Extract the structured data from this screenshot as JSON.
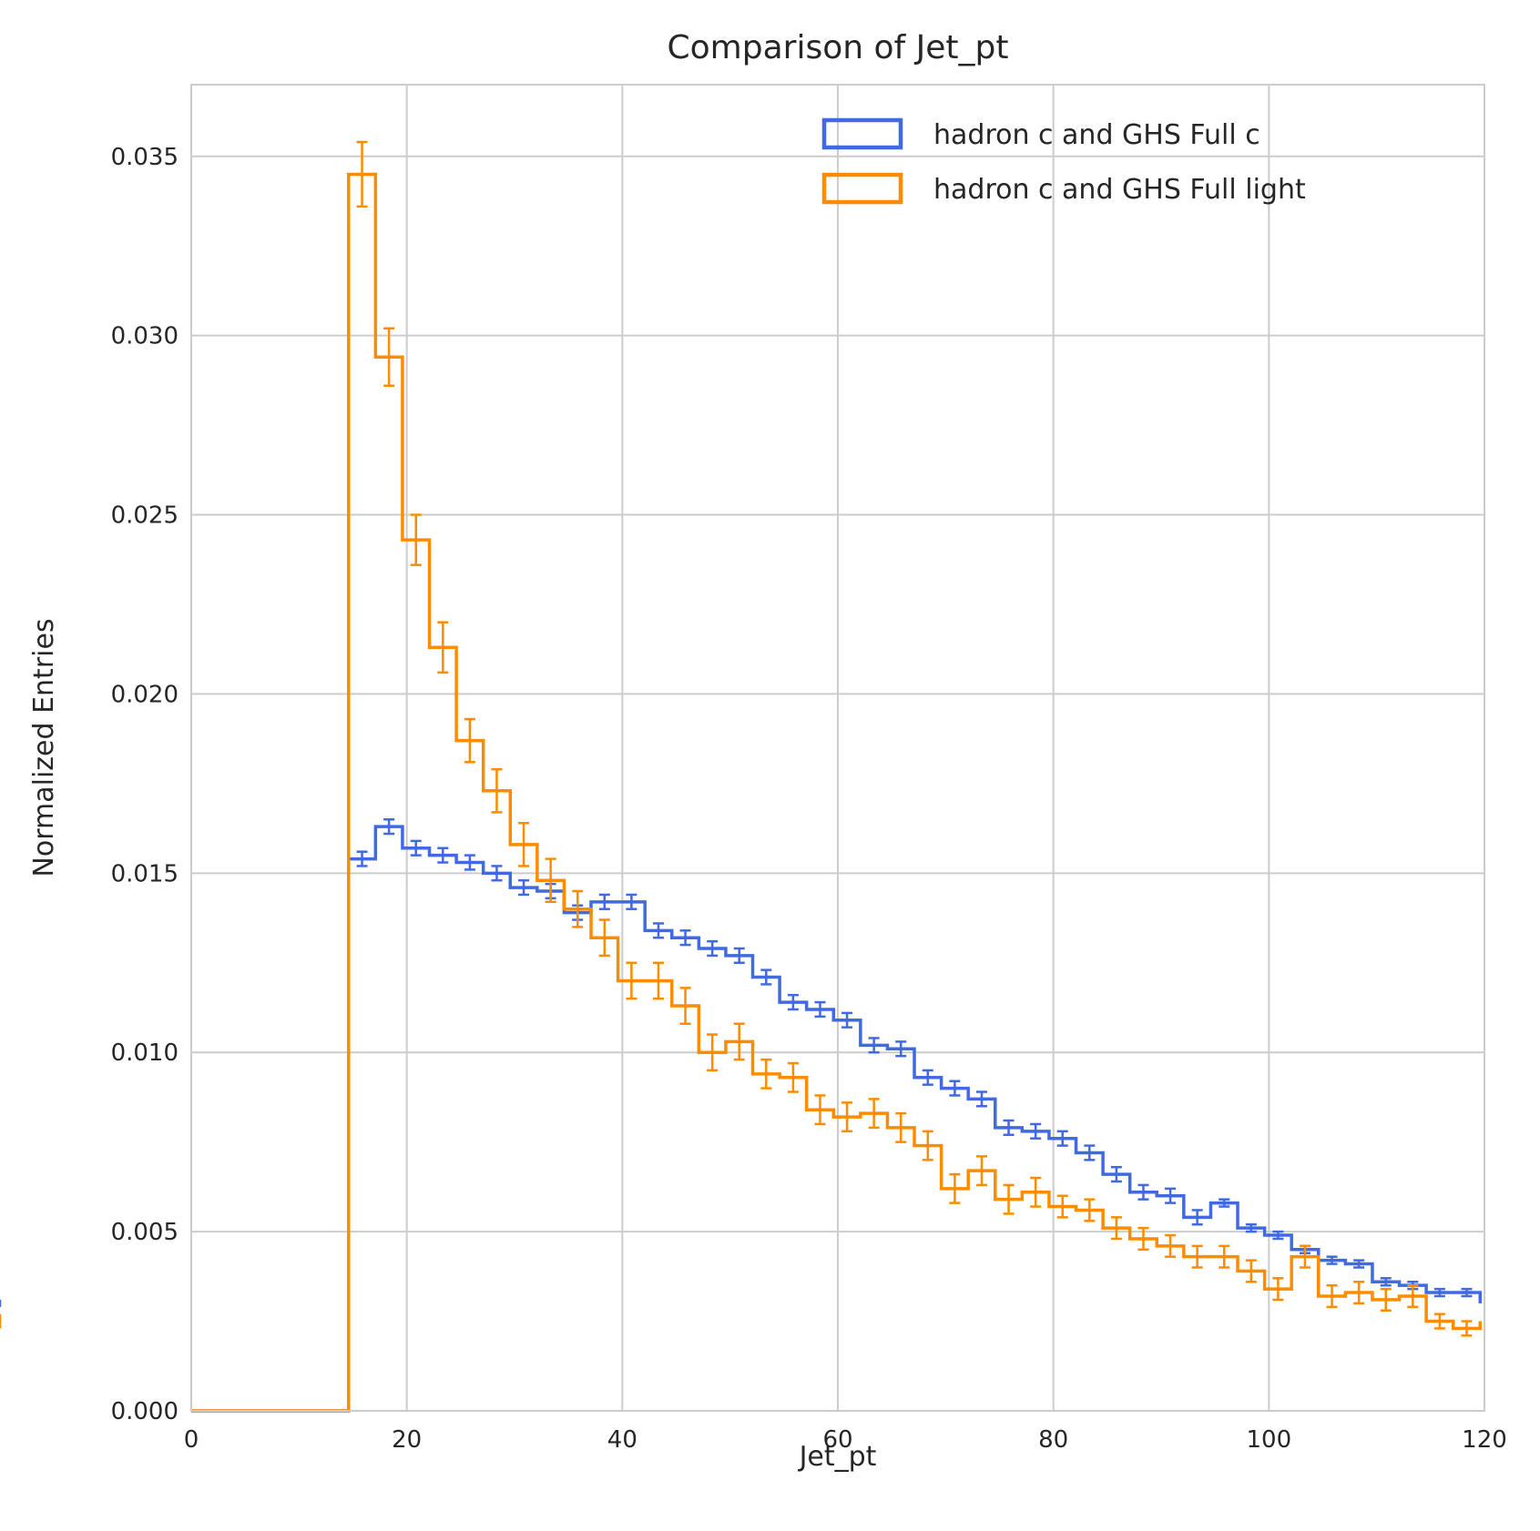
{
  "chart_data": {
    "type": "histogram",
    "title": "Comparison of Jet_pt",
    "xlabel": "Jet_pt",
    "ylabel": "Normalized Entries",
    "xlim": [
      0,
      120
    ],
    "ylim": [
      0,
      0.037
    ],
    "xticks": [
      0,
      20,
      40,
      60,
      80,
      100,
      120
    ],
    "xtick_labels": [
      "0",
      "20",
      "40",
      "60",
      "80",
      "100",
      "120"
    ],
    "yticks": [
      0,
      0.005,
      0.01,
      0.015,
      0.02,
      0.025,
      0.03,
      0.035
    ],
    "ytick_labels": [
      "0.000",
      "0.005",
      "0.010",
      "0.015",
      "0.020",
      "0.025",
      "0.030",
      "0.035"
    ],
    "grid": true,
    "legend_position": "top-right",
    "bin_edges": [
      14.6,
      17.1,
      19.6,
      22.1,
      24.6,
      27.1,
      29.6,
      32.1,
      34.6,
      37.1,
      39.6,
      42.1,
      44.6,
      47.1,
      49.6,
      52.1,
      54.6,
      57.1,
      59.6,
      62.1,
      64.6,
      67.1,
      69.6,
      72.1,
      74.6,
      77.1,
      79.6,
      82.1,
      84.6,
      87.1,
      89.6,
      92.1,
      94.6,
      97.1,
      99.6,
      102.1,
      104.6,
      107.1,
      109.6,
      112.1,
      114.6,
      117.1,
      119.6
    ],
    "series": [
      {
        "name": "hadron c and GHS Full c",
        "color": "#4169e1",
        "values": [
          0.0154,
          0.0163,
          0.0157,
          0.0155,
          0.0153,
          0.015,
          0.0146,
          0.0145,
          0.0139,
          0.0142,
          0.0142,
          0.0134,
          0.0132,
          0.0129,
          0.0127,
          0.0121,
          0.0114,
          0.0112,
          0.0109,
          0.0102,
          0.0101,
          0.0093,
          0.009,
          0.0087,
          0.0079,
          0.0078,
          0.0076,
          0.0072,
          0.0066,
          0.0061,
          0.006,
          0.0054,
          0.0058,
          0.0051,
          0.0049,
          0.0045,
          0.0042,
          0.0041,
          0.0036,
          0.0035,
          0.0033,
          0.0033,
          0.003
        ],
        "errors": [
          0.0002,
          0.0002,
          0.0002,
          0.0002,
          0.0002,
          0.0002,
          0.0002,
          0.0002,
          0.0002,
          0.0002,
          0.0002,
          0.0002,
          0.0002,
          0.0002,
          0.0002,
          0.0002,
          0.0002,
          0.0002,
          0.0002,
          0.0002,
          0.0002,
          0.0002,
          0.0002,
          0.0002,
          0.0002,
          0.0002,
          0.0002,
          0.0002,
          0.0002,
          0.0002,
          0.0002,
          0.0002,
          0.0001,
          0.0001,
          0.0001,
          0.0001,
          0.0001,
          0.0001,
          0.0001,
          0.0001,
          0.0001,
          0.0001,
          0.0001
        ]
      },
      {
        "name": "hadron c and GHS Full light",
        "color": "#ff8c00",
        "values": [
          0.0345,
          0.0294,
          0.0243,
          0.0213,
          0.0187,
          0.0173,
          0.0158,
          0.0148,
          0.014,
          0.0132,
          0.012,
          0.012,
          0.0113,
          0.01,
          0.0103,
          0.0094,
          0.0093,
          0.0084,
          0.0082,
          0.0083,
          0.0079,
          0.0074,
          0.0062,
          0.0067,
          0.0059,
          0.0061,
          0.0057,
          0.0056,
          0.0051,
          0.0048,
          0.0046,
          0.0043,
          0.0043,
          0.0039,
          0.0034,
          0.0043,
          0.0032,
          0.0033,
          0.0031,
          0.0032,
          0.0025,
          0.0023,
          0.0025
        ],
        "errors": [
          0.0009,
          0.0008,
          0.0007,
          0.0007,
          0.0006,
          0.0006,
          0.0006,
          0.0006,
          0.0005,
          0.0005,
          0.0005,
          0.0005,
          0.0005,
          0.0005,
          0.0005,
          0.0004,
          0.0004,
          0.0004,
          0.0004,
          0.0004,
          0.0004,
          0.0004,
          0.0004,
          0.0004,
          0.0004,
          0.0004,
          0.0003,
          0.0003,
          0.0003,
          0.0003,
          0.0003,
          0.0003,
          0.0003,
          0.0003,
          0.0003,
          0.0003,
          0.0003,
          0.0003,
          0.0003,
          0.0003,
          0.0002,
          0.0002,
          0.0002
        ]
      }
    ]
  }
}
